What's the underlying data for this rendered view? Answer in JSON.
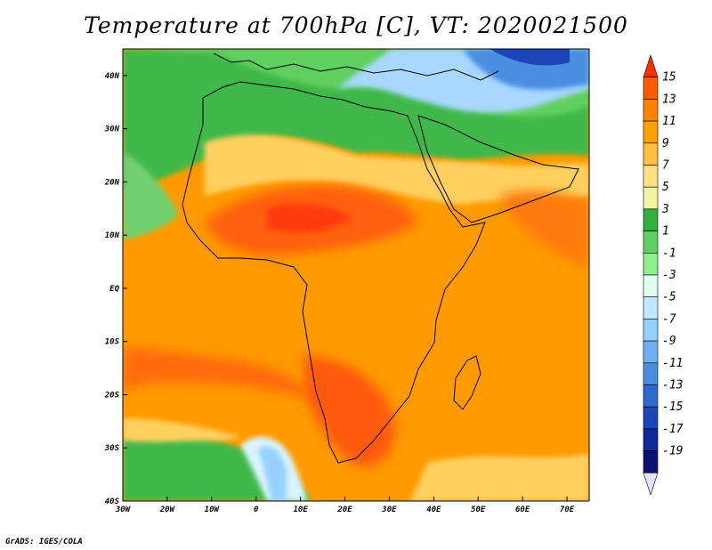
{
  "title": "Temperature at 700hPa [C], VT: 2020021500",
  "credit": "GrADS: IGES/COLA",
  "map": {
    "region": "Africa",
    "lon_range": [
      -30,
      75
    ],
    "lat_range": [
      -40,
      45
    ],
    "lon_ticks": [
      {
        "value": -30,
        "label": "30W"
      },
      {
        "value": -20,
        "label": "20W"
      },
      {
        "value": -10,
        "label": "10W"
      },
      {
        "value": 0,
        "label": "0"
      },
      {
        "value": 10,
        "label": "10E"
      },
      {
        "value": 20,
        "label": "20E"
      },
      {
        "value": 30,
        "label": "30E"
      },
      {
        "value": 40,
        "label": "40E"
      },
      {
        "value": 50,
        "label": "50E"
      },
      {
        "value": 60,
        "label": "60E"
      },
      {
        "value": 70,
        "label": "70E"
      }
    ],
    "lat_ticks": [
      {
        "value": 40,
        "label": "40N"
      },
      {
        "value": 30,
        "label": "30N"
      },
      {
        "value": 20,
        "label": "20N"
      },
      {
        "value": 10,
        "label": "10N"
      },
      {
        "value": 0,
        "label": "EQ"
      },
      {
        "value": -10,
        "label": "10S"
      },
      {
        "value": -20,
        "label": "20S"
      },
      {
        "value": -30,
        "label": "30S"
      },
      {
        "value": -40,
        "label": "40S"
      }
    ]
  },
  "colorbar": {
    "levels": [
      "15",
      "13",
      "11",
      "9",
      "7",
      "5",
      "3",
      "1",
      "-1",
      "-3",
      "-5",
      "-7",
      "-9",
      "-11",
      "-13",
      "-15",
      "-17",
      "-19"
    ],
    "colors": [
      "#ff3000",
      "#ff5a00",
      "#ff8200",
      "#ffa000",
      "#ffc040",
      "#ffe080",
      "#f0f5a0",
      "#30b040",
      "#60d060",
      "#90ee90",
      "#e0fff0",
      "#c0e8ff",
      "#96d0ff",
      "#70b0f0",
      "#4a8ee0",
      "#2e6ad0",
      "#1c46b8",
      "#102898",
      "#0a1070",
      "#e8e0ff"
    ]
  },
  "colors": {
    "warm_core": "#ff5a1a",
    "warm": "#ff8c00",
    "mild": "#ffa820",
    "cool_green": "#30b040",
    "cold_blue": "#4a8ee0"
  }
}
